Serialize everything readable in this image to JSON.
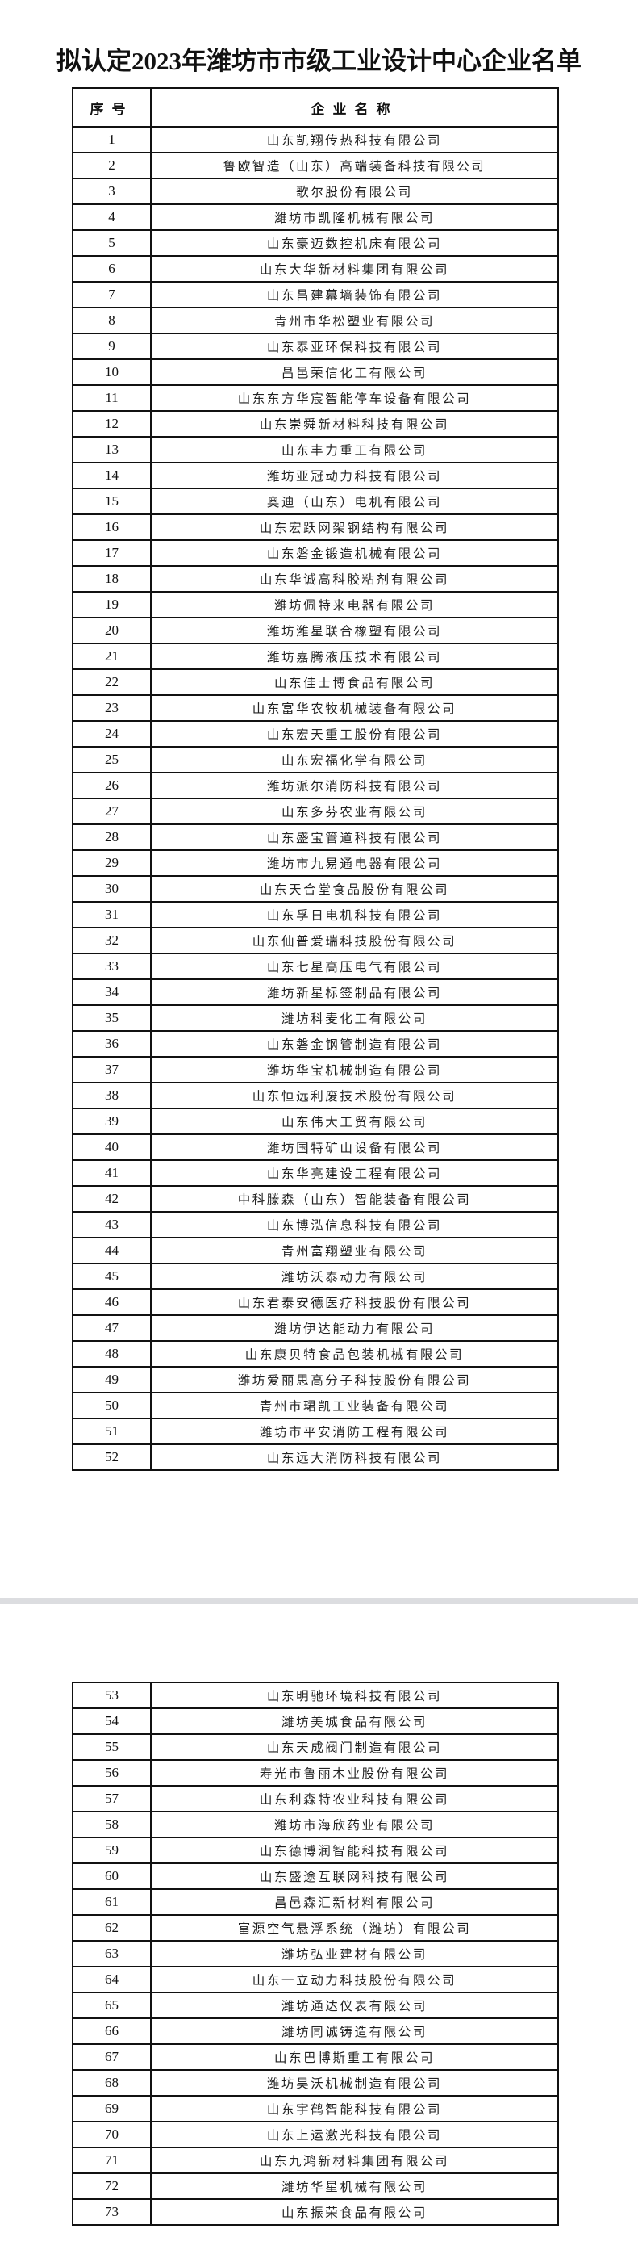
{
  "title": "拟认定2023年潍坊市市级工业设计中心企业名单",
  "table": {
    "headers": [
      "序号",
      "企业名称"
    ],
    "rows_page1": [
      [
        "1",
        "山东凯翔传热科技有限公司"
      ],
      [
        "2",
        "鲁欧智造（山东）高端装备科技有限公司"
      ],
      [
        "3",
        "歌尔股份有限公司"
      ],
      [
        "4",
        "潍坊市凯隆机械有限公司"
      ],
      [
        "5",
        "山东豪迈数控机床有限公司"
      ],
      [
        "6",
        "山东大华新材料集团有限公司"
      ],
      [
        "7",
        "山东昌建幕墙装饰有限公司"
      ],
      [
        "8",
        "青州市华松塑业有限公司"
      ],
      [
        "9",
        "山东泰亚环保科技有限公司"
      ],
      [
        "10",
        "昌邑荣信化工有限公司"
      ],
      [
        "11",
        "山东东方华宸智能停车设备有限公司"
      ],
      [
        "12",
        "山东崇舜新材料科技有限公司"
      ],
      [
        "13",
        "山东丰力重工有限公司"
      ],
      [
        "14",
        "潍坊亚冠动力科技有限公司"
      ],
      [
        "15",
        "奥迪（山东）电机有限公司"
      ],
      [
        "16",
        "山东宏跃网架钢结构有限公司"
      ],
      [
        "17",
        "山东磐金锻造机械有限公司"
      ],
      [
        "18",
        "山东华诚高科胶粘剂有限公司"
      ],
      [
        "19",
        "潍坊佩特来电器有限公司"
      ],
      [
        "20",
        "潍坊潍星联合橡塑有限公司"
      ],
      [
        "21",
        "潍坊嘉腾液压技术有限公司"
      ],
      [
        "22",
        "山东佳士博食品有限公司"
      ],
      [
        "23",
        "山东富华农牧机械装备有限公司"
      ],
      [
        "24",
        "山东宏天重工股份有限公司"
      ],
      [
        "25",
        "山东宏福化学有限公司"
      ],
      [
        "26",
        "潍坊派尔消防科技有限公司"
      ],
      [
        "27",
        "山东多芬农业有限公司"
      ],
      [
        "28",
        "山东盛宝管道科技有限公司"
      ],
      [
        "29",
        "潍坊市九易通电器有限公司"
      ],
      [
        "30",
        "山东天合堂食品股份有限公司"
      ],
      [
        "31",
        "山东孚日电机科技有限公司"
      ],
      [
        "32",
        "山东仙普爱瑞科技股份有限公司"
      ],
      [
        "33",
        "山东七星高压电气有限公司"
      ],
      [
        "34",
        "潍坊新星标签制品有限公司"
      ],
      [
        "35",
        "潍坊科麦化工有限公司"
      ],
      [
        "36",
        "山东磐金钢管制造有限公司"
      ],
      [
        "37",
        "潍坊华宝机械制造有限公司"
      ],
      [
        "38",
        "山东恒远利废技术股份有限公司"
      ],
      [
        "39",
        "山东伟大工贸有限公司"
      ],
      [
        "40",
        "潍坊国特矿山设备有限公司"
      ],
      [
        "41",
        "山东华亮建设工程有限公司"
      ],
      [
        "42",
        "中科滕森（山东）智能装备有限公司"
      ],
      [
        "43",
        "山东博泓信息科技有限公司"
      ],
      [
        "44",
        "青州富翔塑业有限公司"
      ],
      [
        "45",
        "潍坊沃泰动力有限公司"
      ],
      [
        "46",
        "山东君泰安德医疗科技股份有限公司"
      ],
      [
        "47",
        "潍坊伊达能动力有限公司"
      ],
      [
        "48",
        "山东康贝特食品包装机械有限公司"
      ],
      [
        "49",
        "潍坊爱丽思高分子科技股份有限公司"
      ],
      [
        "50",
        "青州市珺凯工业装备有限公司"
      ],
      [
        "51",
        "潍坊市平安消防工程有限公司"
      ],
      [
        "52",
        "山东远大消防科技有限公司"
      ]
    ],
    "rows_page2": [
      [
        "53",
        "山东明驰环境科技有限公司"
      ],
      [
        "54",
        "潍坊美城食品有限公司"
      ],
      [
        "55",
        "山东天成阀门制造有限公司"
      ],
      [
        "56",
        "寿光市鲁丽木业股份有限公司"
      ],
      [
        "57",
        "山东利森特农业科技有限公司"
      ],
      [
        "58",
        "潍坊市海欣药业有限公司"
      ],
      [
        "59",
        "山东德博润智能科技有限公司"
      ],
      [
        "60",
        "山东盛途互联网科技有限公司"
      ],
      [
        "61",
        "昌邑森汇新材料有限公司"
      ],
      [
        "62",
        "富源空气悬浮系统（潍坊）有限公司"
      ],
      [
        "63",
        "潍坊弘业建材有限公司"
      ],
      [
        "64",
        "山东一立动力科技股份有限公司"
      ],
      [
        "65",
        "潍坊通达仪表有限公司"
      ],
      [
        "66",
        "潍坊同诚铸造有限公司"
      ],
      [
        "67",
        "山东巴博斯重工有限公司"
      ],
      [
        "68",
        "潍坊昊沃机械制造有限公司"
      ],
      [
        "69",
        "山东宇鹤智能科技有限公司"
      ],
      [
        "70",
        "山东上运激光科技有限公司"
      ],
      [
        "71",
        "山东九鸿新材料集团有限公司"
      ],
      [
        "72",
        "潍坊华星机械有限公司"
      ],
      [
        "73",
        "山东振荣食品有限公司"
      ]
    ]
  }
}
